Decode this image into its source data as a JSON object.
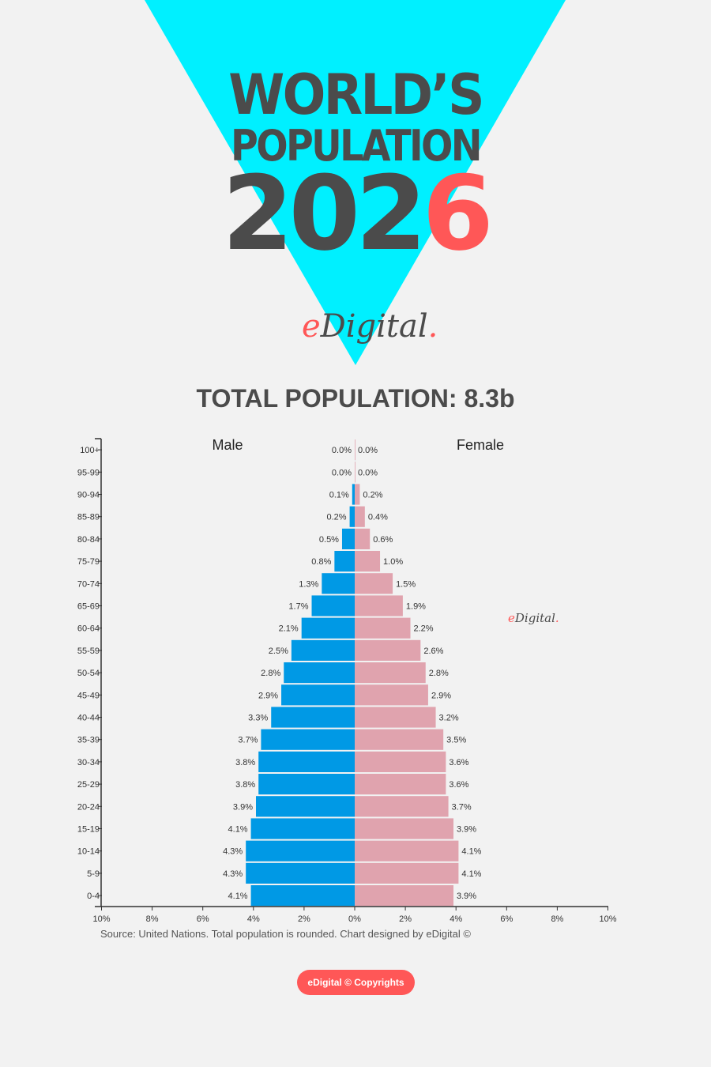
{
  "header": {
    "title_line1": "WORLD’S",
    "title_line2": "POPULATION",
    "year_prefix": "202",
    "year_last_digit": "6",
    "logo_text": "eDigital",
    "logo_e": "e",
    "logo_rest": "Digital",
    "logo_dot": "."
  },
  "total_population": "TOTAL POPULATION: 8.3b",
  "colors": {
    "triangle": "#00f0ff",
    "title": "#4b4b4b",
    "accent": "#ff5757",
    "male": "#0099e5",
    "female": "#e0a3ae"
  },
  "chart_data": {
    "type": "bar",
    "orientation": "horizontal population pyramid",
    "categories": [
      "100+",
      "95-99",
      "90-94",
      "85-89",
      "80-84",
      "75-79",
      "70-74",
      "65-69",
      "60-64",
      "55-59",
      "50-54",
      "45-49",
      "40-44",
      "35-39",
      "30-34",
      "25-29",
      "20-24",
      "15-19",
      "10-14",
      "5-9",
      "0-4"
    ],
    "series": [
      {
        "name": "Male",
        "values": [
          0.0,
          0.0,
          0.1,
          0.2,
          0.5,
          0.8,
          1.3,
          1.7,
          2.1,
          2.5,
          2.8,
          2.9,
          3.3,
          3.7,
          3.8,
          3.8,
          3.9,
          4.1,
          4.3,
          4.3,
          4.1
        ]
      },
      {
        "name": "Female",
        "values": [
          0.0,
          0.0,
          0.2,
          0.4,
          0.6,
          1.0,
          1.5,
          1.9,
          2.2,
          2.6,
          2.8,
          2.9,
          3.2,
          3.5,
          3.6,
          3.6,
          3.7,
          3.9,
          4.1,
          4.1,
          3.9
        ]
      }
    ],
    "xlim": [
      -10,
      10
    ],
    "xticks": [
      "10%",
      "8%",
      "6%",
      "4%",
      "2%",
      "0%",
      "2%",
      "4%",
      "6%",
      "8%",
      "10%"
    ],
    "unit": "%",
    "grid": false
  },
  "source": "Source: United Nations. Total population is rounded. Chart designed by eDigital ©",
  "copyright_button": "eDigital © Copyrights"
}
